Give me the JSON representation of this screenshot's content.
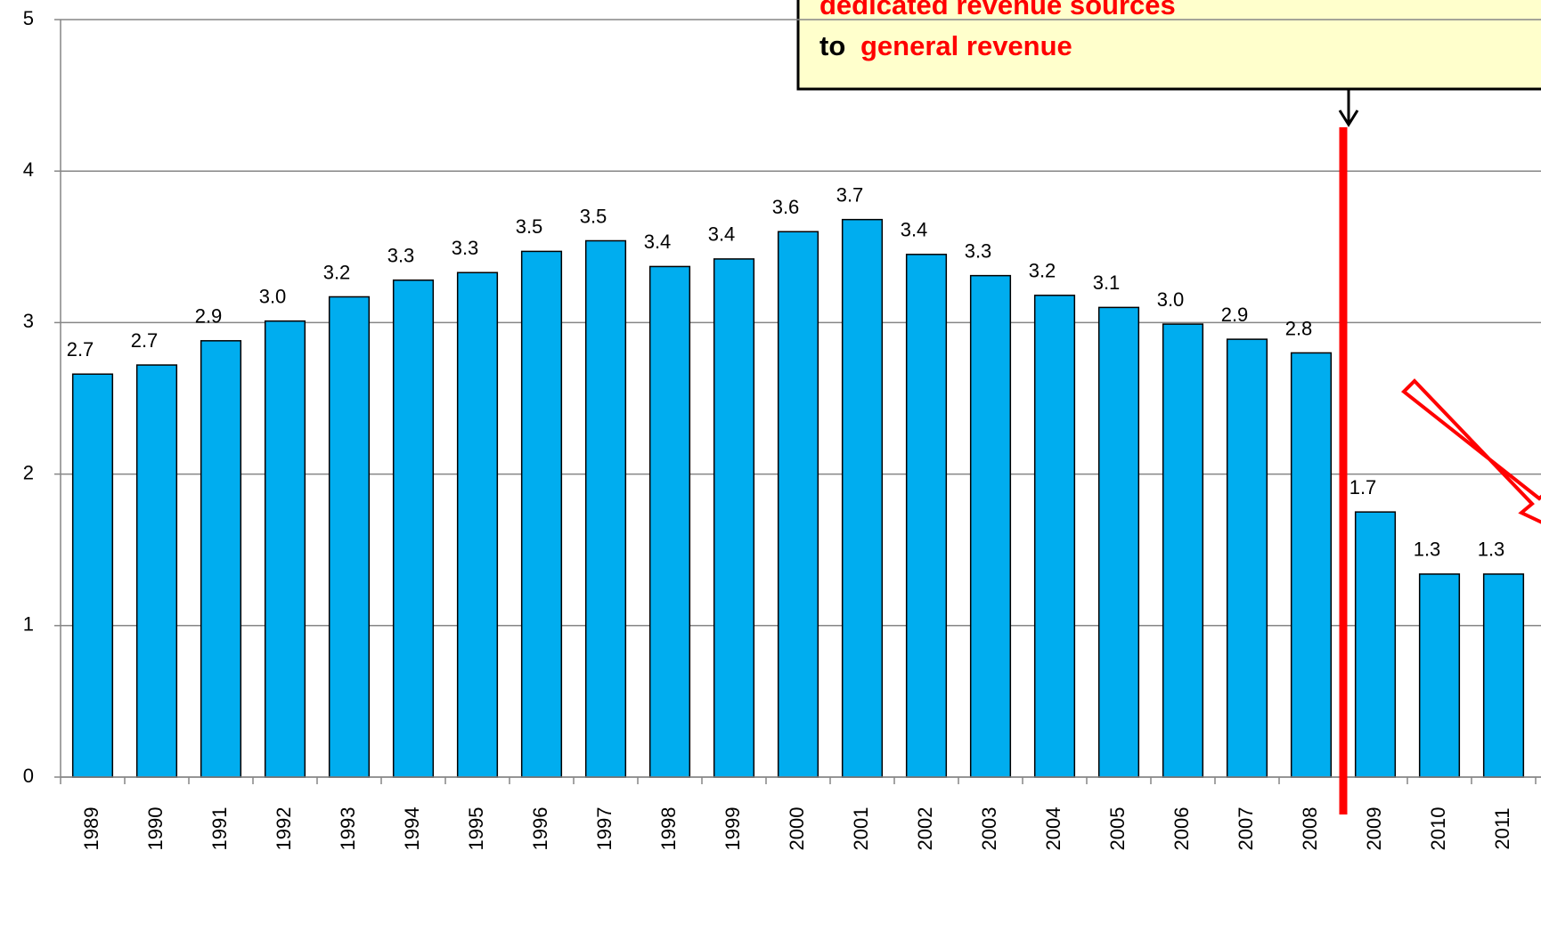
{
  "chart_data": {
    "type": "bar",
    "categories": [
      "1989",
      "1990",
      "1991",
      "1992",
      "1993",
      "1994",
      "1995",
      "1996",
      "1997",
      "1998",
      "1999",
      "2000",
      "2001",
      "2002",
      "2003",
      "2004",
      "2005",
      "2006",
      "2007",
      "2008",
      "2009",
      "2010",
      "2011"
    ],
    "values": [
      2.66,
      2.72,
      2.88,
      3.01,
      3.17,
      3.28,
      3.33,
      3.47,
      3.54,
      3.37,
      3.42,
      3.6,
      3.68,
      3.45,
      3.31,
      3.18,
      3.1,
      2.99,
      2.89,
      2.8,
      1.75,
      1.34,
      1.34
    ],
    "value_labels": [
      "2.7",
      "2.7",
      "2.9",
      "3.0",
      "3.2",
      "3.3",
      "3.3",
      "3.5",
      "3.5",
      "3.4",
      "3.4",
      "3.6",
      "3.7",
      "3.4",
      "3.3",
      "3.2",
      "3.1",
      "3.0",
      "2.9",
      "2.8",
      "1.7",
      "1.3",
      "1.3"
    ],
    "color": "#00adef",
    "ylim": [
      0,
      5
    ],
    "yticks": [
      0,
      1,
      2,
      3,
      4,
      5
    ],
    "grid": true,
    "annotations": [
      "dedicated revenue sources",
      "to",
      "general revenue"
    ]
  }
}
